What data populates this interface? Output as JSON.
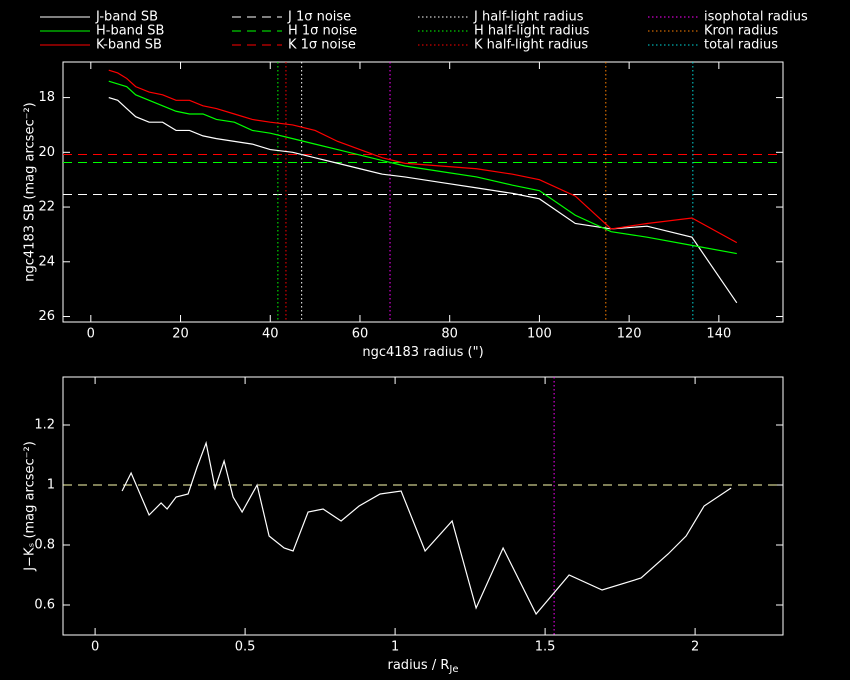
{
  "chart_data": [
    {
      "type": "line",
      "xlabel": "ngc4183 radius (\")",
      "ylabel": "ngc4183 SB (mag arcsec⁻²)",
      "x": [
        4,
        6,
        8,
        10,
        13,
        16,
        19,
        22,
        25,
        28,
        32,
        36,
        40,
        45,
        50,
        55,
        60,
        65,
        70,
        78,
        86,
        94,
        100,
        108,
        116,
        124,
        134,
        144
      ],
      "series": [
        {
          "name": "J-band SB",
          "color": "#ffffff",
          "values": [
            18.0,
            18.1,
            18.4,
            18.7,
            18.9,
            18.9,
            19.2,
            19.2,
            19.4,
            19.5,
            19.6,
            19.7,
            19.9,
            20.0,
            20.2,
            20.4,
            20.6,
            20.8,
            20.9,
            21.1,
            21.3,
            21.5,
            21.7,
            22.6,
            22.8,
            22.7,
            23.1,
            25.5
          ]
        },
        {
          "name": "H-band SB",
          "color": "#00ff00",
          "values": [
            17.4,
            17.5,
            17.6,
            17.9,
            18.1,
            18.3,
            18.5,
            18.6,
            18.6,
            18.8,
            18.9,
            19.2,
            19.3,
            19.5,
            19.7,
            19.9,
            20.1,
            20.3,
            20.5,
            20.7,
            20.9,
            21.2,
            21.4,
            22.3,
            22.9,
            23.1,
            23.4,
            23.7
          ]
        },
        {
          "name": "K-band SB",
          "color": "#ff0000",
          "values": [
            17.0,
            17.1,
            17.3,
            17.6,
            17.8,
            17.9,
            18.1,
            18.1,
            18.3,
            18.4,
            18.6,
            18.8,
            18.9,
            19.0,
            19.2,
            19.6,
            19.9,
            20.2,
            20.4,
            20.5,
            20.6,
            20.8,
            21.0,
            21.6,
            22.8,
            22.6,
            22.4,
            23.3
          ]
        }
      ],
      "hlines": [
        {
          "name": "J 1σ noise",
          "color": "#ffffff",
          "value": 21.54
        },
        {
          "name": "H 1σ noise",
          "color": "#00ff00",
          "value": 20.37
        },
        {
          "name": "K 1σ noise",
          "color": "#ff0000",
          "value": 20.08
        }
      ],
      "vlines": [
        {
          "name": "J half-light radius",
          "color": "#ffffff",
          "value": 47.0
        },
        {
          "name": "H half-light radius",
          "color": "#00ff00",
          "value": 41.7
        },
        {
          "name": "K half-light radius",
          "color": "#ff0000",
          "value": 43.5
        },
        {
          "name": "isophotal radius",
          "color": "#ff00ff",
          "value": 66.7
        },
        {
          "name": "Kron radius",
          "color": "#ff8000",
          "value": 114.8
        },
        {
          "name": "total radius",
          "color": "#00d8d8",
          "value": 134.2
        }
      ],
      "xlim": [
        -6.2,
        154.3
      ],
      "ylim": [
        26.2,
        16.7
      ],
      "xticks": [
        0,
        20,
        40,
        60,
        80,
        100,
        120,
        140
      ],
      "yticks": [
        18,
        20,
        22,
        24,
        26
      ]
    },
    {
      "type": "line",
      "xlabel": "radius / R",
      "xlabel_sub": "Je",
      "ylabel": "J−Kₛ (mag arcsec⁻²)",
      "x": [
        0.09,
        0.12,
        0.18,
        0.22,
        0.24,
        0.27,
        0.31,
        0.34,
        0.37,
        0.4,
        0.43,
        0.46,
        0.49,
        0.54,
        0.58,
        0.63,
        0.66,
        0.71,
        0.76,
        0.82,
        0.88,
        0.95,
        1.02,
        1.1,
        1.19,
        1.27,
        1.36,
        1.47,
        1.58,
        1.69,
        1.82,
        1.91,
        1.97,
        2.03,
        2.12
      ],
      "series": [
        {
          "color": "#ffffff",
          "values": [
            0.98,
            1.04,
            0.9,
            0.94,
            0.92,
            0.96,
            0.97,
            1.06,
            1.14,
            0.99,
            1.08,
            0.96,
            0.91,
            1.0,
            0.83,
            0.79,
            0.78,
            0.91,
            0.92,
            0.88,
            0.93,
            0.97,
            0.98,
            0.78,
            0.88,
            0.59,
            0.79,
            0.57,
            0.7,
            0.65,
            0.69,
            0.77,
            0.83,
            0.93,
            0.99
          ]
        }
      ],
      "hlines": [
        {
          "color": "#ffffb0",
          "value": 1
        }
      ],
      "vlines": [
        {
          "color": "#ff00ff",
          "value": 1.53
        }
      ],
      "xlim": [
        -0.107,
        2.293
      ],
      "ylim": [
        0.5,
        1.36
      ],
      "xticks": [
        0,
        0.5,
        1,
        1.5,
        2
      ],
      "yticks": [
        0.6,
        0.8,
        1,
        1.2
      ]
    }
  ]
}
